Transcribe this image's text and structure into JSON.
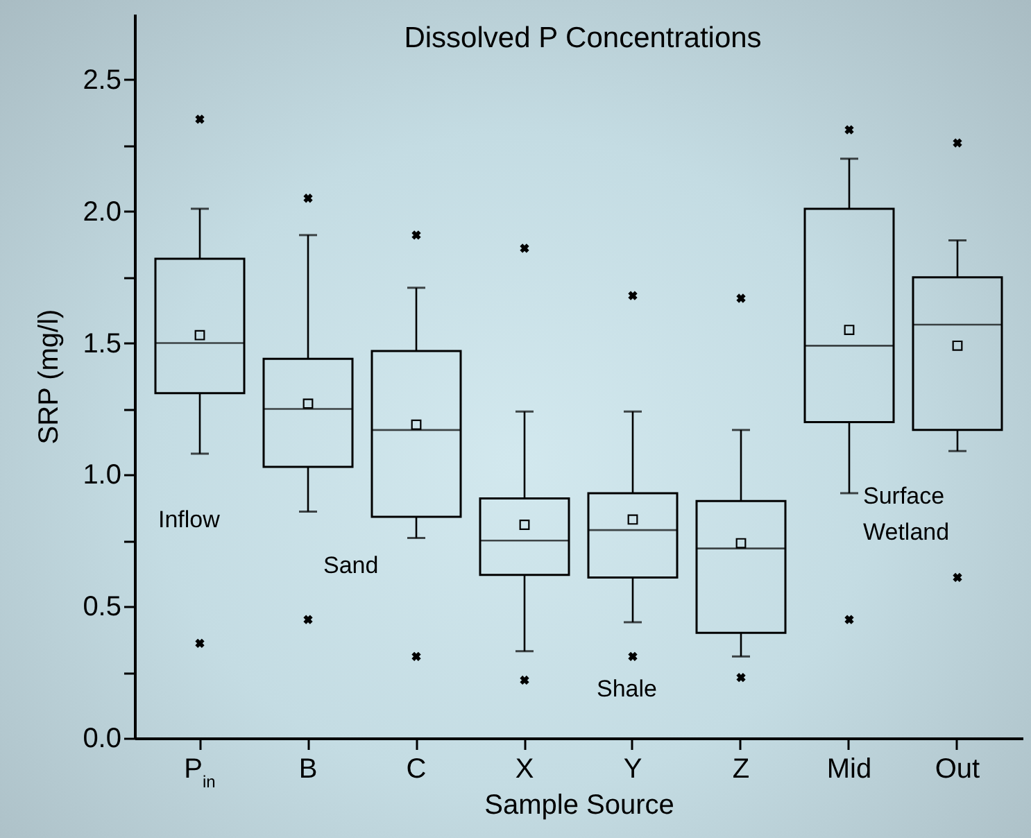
{
  "chart_data": {
    "type": "box",
    "title": "Dissolved P Concentrations",
    "xlabel": "Sample Source",
    "ylabel": "SRP (mg/l)",
    "categories": [
      "P$_{in}$",
      "B",
      "C",
      "X",
      "Y",
      "Z",
      "Mid",
      "Out"
    ],
    "boxes": [
      {
        "low": 1.08,
        "q1": 1.31,
        "median": 1.5,
        "q3": 1.82,
        "high": 2.01,
        "mean": 1.53,
        "outliers": [
          2.35,
          0.36
        ]
      },
      {
        "low": 0.86,
        "q1": 1.03,
        "median": 1.25,
        "q3": 1.44,
        "high": 1.91,
        "mean": 1.27,
        "outliers": [
          2.05,
          0.45
        ]
      },
      {
        "low": 0.76,
        "q1": 0.84,
        "median": 1.17,
        "q3": 1.47,
        "high": 1.71,
        "mean": 1.19,
        "outliers": [
          1.91,
          0.31
        ]
      },
      {
        "low": 0.33,
        "q1": 0.62,
        "median": 0.75,
        "q3": 0.91,
        "high": 1.24,
        "mean": 0.81,
        "outliers": [
          1.86,
          0.22
        ]
      },
      {
        "low": 0.44,
        "q1": 0.61,
        "median": 0.79,
        "q3": 0.93,
        "high": 1.24,
        "mean": 0.83,
        "outliers": [
          1.68,
          0.31
        ]
      },
      {
        "low": 0.31,
        "q1": 0.4,
        "median": 0.72,
        "q3": 0.9,
        "high": 1.17,
        "mean": 0.74,
        "outliers": [
          1.67,
          0.23
        ]
      },
      {
        "low": 0.93,
        "q1": 1.2,
        "median": 1.49,
        "q3": 2.01,
        "high": 2.2,
        "mean": 1.55,
        "outliers": [
          2.31,
          0.45
        ]
      },
      {
        "low": 1.09,
        "q1": 1.17,
        "median": 1.57,
        "q3": 1.75,
        "high": 1.89,
        "mean": 1.49,
        "outliers": [
          2.26,
          0.61
        ]
      }
    ],
    "color": "#000000",
    "ylim": [
      0,
      2.75
    ],
    "yticks": [
      {
        "value": 0,
        "label": "0.0"
      },
      {
        "value": 0.25,
        "label": null
      },
      {
        "value": 0.5,
        "label": "0.5"
      },
      {
        "value": 0.75,
        "label": null
      },
      {
        "value": 1,
        "label": "1.0"
      },
      {
        "value": 1.25,
        "label": null
      },
      {
        "value": 1.5,
        "label": "1.5"
      },
      {
        "value": 1.75,
        "label": null
      },
      {
        "value": 2,
        "label": "2.0"
      },
      {
        "value": 2.25,
        "label": null
      },
      {
        "value": 2.5,
        "label": "2.5"
      }
    ],
    "annotations": [
      "Inflow",
      "Sand",
      "Shale",
      "Surface Wetland"
    ],
    "grid": false
  }
}
